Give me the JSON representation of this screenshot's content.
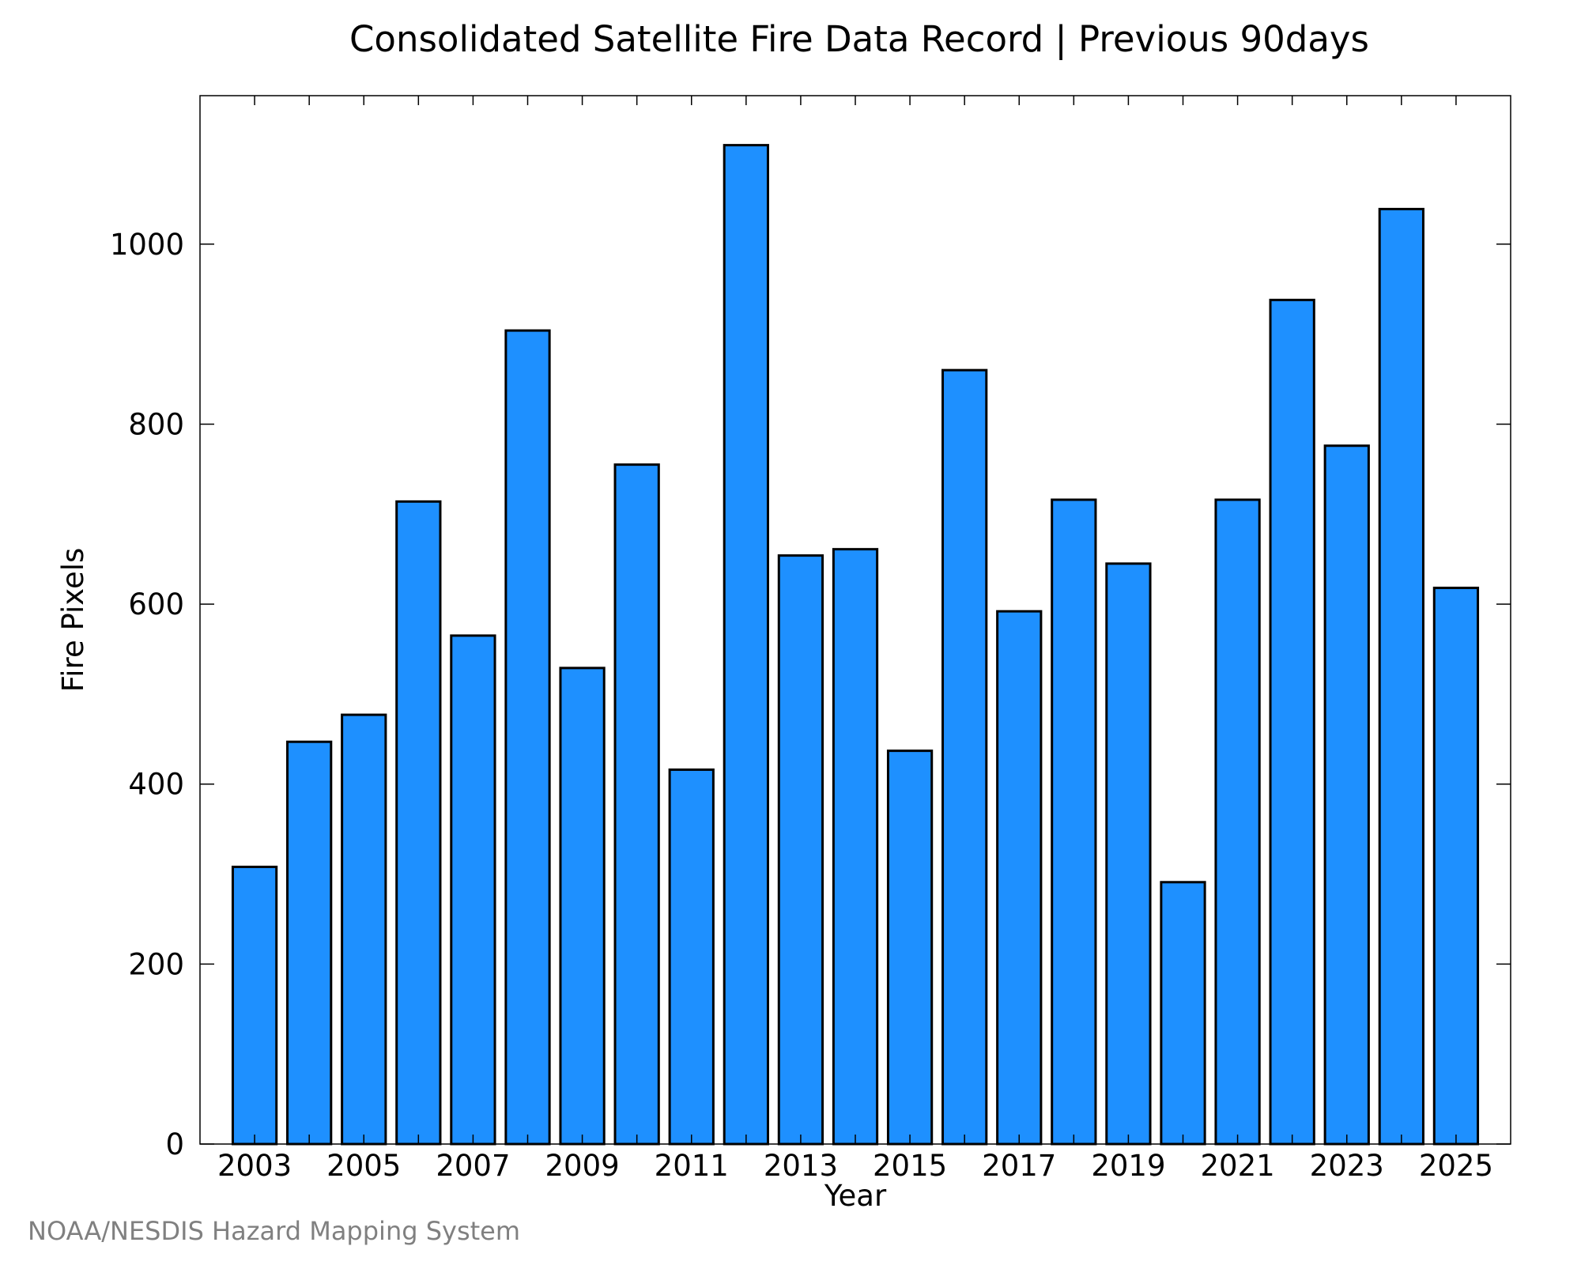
{
  "chart_data": {
    "type": "bar",
    "title": "Consolidated Satellite Fire Data Record | Previous 90days",
    "xlabel": "Year",
    "ylabel": "Fire Pixels",
    "categories": [
      "2003",
      "2004",
      "2005",
      "2006",
      "2007",
      "2008",
      "2009",
      "2010",
      "2011",
      "2012",
      "2013",
      "2014",
      "2015",
      "2016",
      "2017",
      "2018",
      "2019",
      "2020",
      "2021",
      "2022",
      "2023",
      "2024",
      "2025"
    ],
    "values": [
      308,
      447,
      477,
      714,
      565,
      904,
      529,
      755,
      416,
      1110,
      654,
      661,
      437,
      860,
      592,
      716,
      645,
      291,
      716,
      938,
      776,
      1039,
      618
    ],
    "x_tick_labels": [
      "2003",
      "2005",
      "2007",
      "2009",
      "2011",
      "2013",
      "2015",
      "2017",
      "2019",
      "2021",
      "2023",
      "2025"
    ],
    "y_ticks": [
      0,
      200,
      400,
      600,
      800,
      1000
    ],
    "ylim": [
      0,
      1165
    ],
    "grid": false,
    "bar_color": "#1E90FF",
    "bar_edge_color": "#000000"
  },
  "credit": "NOAA/NESDIS Hazard Mapping System"
}
